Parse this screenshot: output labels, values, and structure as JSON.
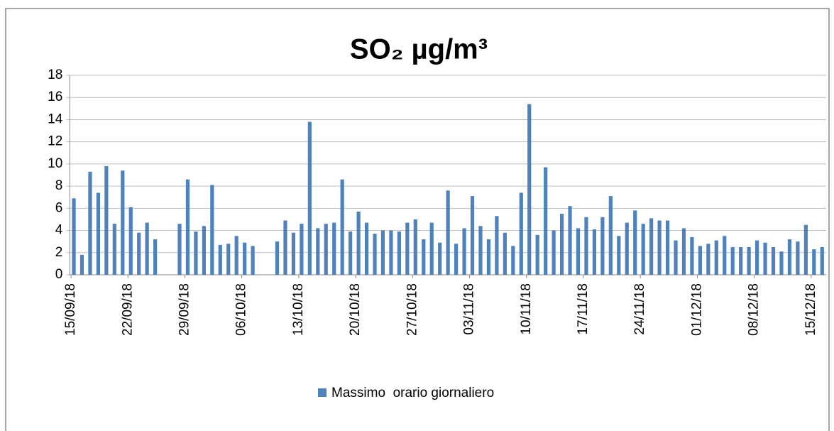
{
  "chart_data": {
    "type": "bar",
    "title": "SO₂ µg/m³",
    "categories": [
      "15/09/18",
      null,
      null,
      null,
      null,
      null,
      null,
      "22/09/18",
      null,
      null,
      null,
      null,
      null,
      null,
      "29/09/18",
      null,
      null,
      null,
      null,
      null,
      null,
      "06/10/18",
      null,
      null,
      null,
      null,
      null,
      null,
      "13/10/18",
      null,
      null,
      null,
      null,
      null,
      null,
      "20/10/18",
      null,
      null,
      null,
      null,
      null,
      null,
      "27/10/18",
      null,
      null,
      null,
      null,
      null,
      null,
      "03/11/18",
      null,
      null,
      null,
      null,
      null,
      null,
      "10/11/18",
      null,
      null,
      null,
      null,
      null,
      null,
      "17/11/18",
      null,
      null,
      null,
      null,
      null,
      null,
      "24/11/18",
      null,
      null,
      null,
      null,
      null,
      null,
      "01/12/18",
      null,
      null,
      null,
      null,
      null,
      null,
      "08/12/18",
      null,
      null,
      null,
      null,
      null,
      null,
      "15/12/18",
      null
    ],
    "series": [
      {
        "name": "Massimo  orario giornaliero",
        "color": "#4f81bd",
        "values": [
          6.9,
          1.8,
          9.3,
          7.4,
          9.8,
          4.6,
          9.4,
          6.1,
          3.8,
          4.7,
          3.2,
          null,
          null,
          4.6,
          8.6,
          3.9,
          4.4,
          8.1,
          2.7,
          2.8,
          3.5,
          2.9,
          2.6,
          null,
          null,
          3.0,
          4.9,
          3.8,
          4.6,
          13.8,
          4.2,
          4.6,
          4.7,
          8.6,
          3.9,
          5.7,
          4.7,
          3.7,
          4.0,
          4.0,
          3.9,
          4.7,
          5.0,
          3.2,
          4.7,
          2.9,
          7.6,
          2.8,
          4.2,
          7.1,
          4.4,
          3.2,
          5.3,
          3.8,
          2.6,
          7.4,
          15.4,
          3.6,
          9.7,
          4.0,
          5.5,
          6.2,
          4.2,
          5.2,
          4.1,
          5.2,
          7.1,
          3.5,
          4.7,
          5.8,
          4.6,
          5.1,
          4.9,
          4.9,
          3.1,
          4.2,
          3.4,
          2.6,
          2.8,
          3.1,
          3.5,
          2.5,
          2.5,
          2.5,
          3.1,
          2.9,
          2.5,
          2.1,
          3.2,
          3.0,
          4.5,
          2.3,
          2.5
        ]
      }
    ],
    "ylim": [
      0,
      18
    ],
    "yticks": [
      0,
      2,
      4,
      6,
      8,
      10,
      12,
      14,
      16,
      18
    ],
    "grid": true,
    "legend": "bottom"
  }
}
